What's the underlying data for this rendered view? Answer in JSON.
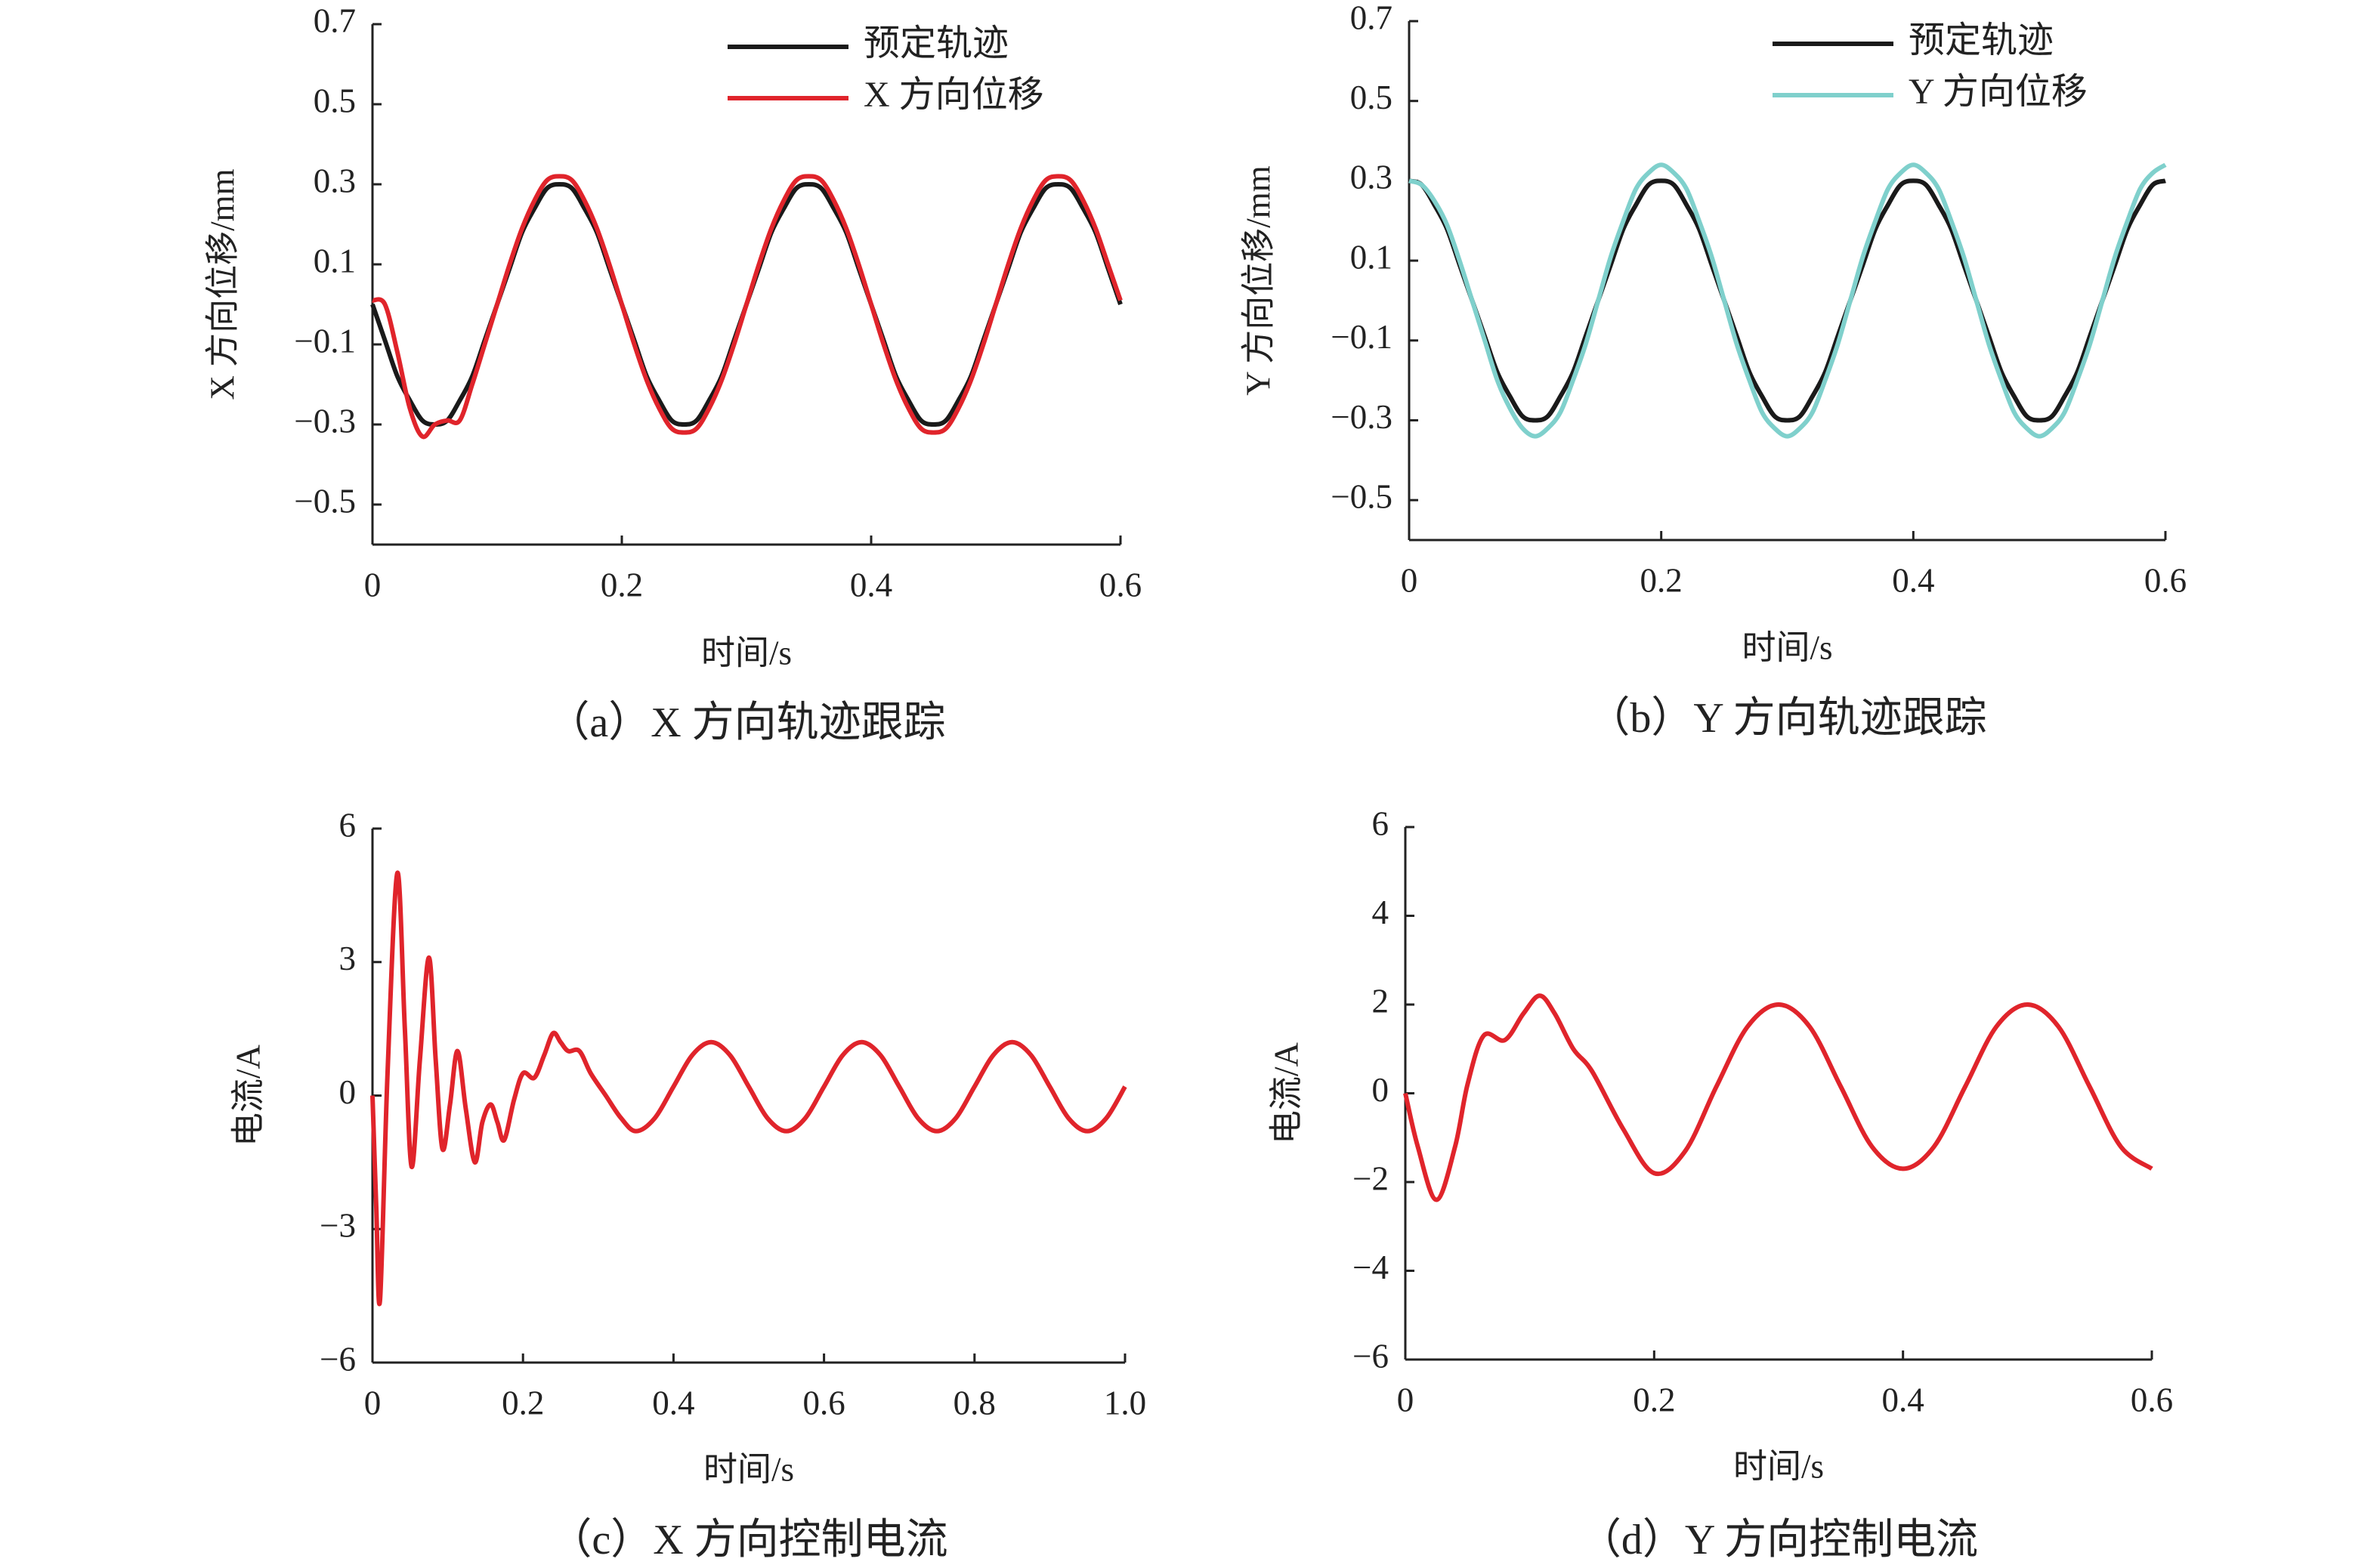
{
  "chart_data": [
    {
      "type": "line",
      "caption": "（a）X 方向轨迹跟踪",
      "xlabel": "时间/s",
      "ylabel": "X 方向位移/mm",
      "legend": "upper right",
      "xlim": [
        0,
        0.6
      ],
      "xticks": [
        0,
        0.2,
        0.4,
        0.6
      ],
      "ylim": [
        -0.6,
        0.7
      ],
      "yticks": [
        0.7,
        0.5,
        0.3,
        0.1,
        {
          "value": -0.1,
          "label": "−0.1"
        },
        {
          "value": -0.3,
          "label": "−0.3"
        },
        {
          "value": -0.5,
          "label": "−0.5"
        }
      ],
      "x": [
        0,
        0.01,
        0.02,
        0.03,
        0.04,
        0.05,
        0.06,
        0.07,
        0.08,
        0.09,
        0.1,
        0.11,
        0.12,
        0.13,
        0.14,
        0.15,
        0.16,
        0.17,
        0.18,
        0.19,
        0.2,
        0.21,
        0.22,
        0.23,
        0.24,
        0.25,
        0.26,
        0.27,
        0.28,
        0.29,
        0.3,
        0.31,
        0.32,
        0.33,
        0.34,
        0.35,
        0.36,
        0.37,
        0.38,
        0.39,
        0.4,
        0.41,
        0.42,
        0.43,
        0.44,
        0.45,
        0.46,
        0.47,
        0.48,
        0.49,
        0.5,
        0.51,
        0.52,
        0.53,
        0.54,
        0.55,
        0.56,
        0.57,
        0.58,
        0.59,
        0.6
      ],
      "series": [
        {
          "name": "预定轨迹",
          "color": "#1a1a1a",
          "values": [
            0,
            -0.09,
            -0.18,
            -0.24,
            -0.29,
            -0.3,
            -0.29,
            -0.24,
            -0.18,
            -0.09,
            0,
            0.09,
            0.18,
            0.24,
            0.29,
            0.3,
            0.29,
            0.24,
            0.18,
            0.09,
            0,
            -0.09,
            -0.18,
            -0.24,
            -0.29,
            -0.3,
            -0.29,
            -0.24,
            -0.18,
            -0.09,
            0,
            0.09,
            0.18,
            0.24,
            0.29,
            0.3,
            0.29,
            0.24,
            0.18,
            0.09,
            0,
            -0.09,
            -0.18,
            -0.24,
            -0.29,
            -0.3,
            -0.29,
            -0.24,
            -0.18,
            -0.09,
            0,
            0.09,
            0.18,
            0.24,
            0.29,
            0.3,
            0.29,
            0.24,
            0.18,
            0.09,
            0
          ]
        },
        {
          "name": "X 方向位移",
          "color": "#e0242b",
          "values": [
            0.01,
            0,
            -0.12,
            -0.26,
            -0.33,
            -0.3,
            -0.29,
            -0.29,
            -0.2,
            -0.1,
            0,
            0.1,
            0.19,
            0.26,
            0.31,
            0.32,
            0.31,
            0.26,
            0.19,
            0.1,
            0,
            -0.1,
            -0.19,
            -0.26,
            -0.31,
            -0.32,
            -0.31,
            -0.26,
            -0.19,
            -0.1,
            0,
            0.1,
            0.19,
            0.26,
            0.31,
            0.32,
            0.31,
            0.26,
            0.19,
            0.1,
            0,
            -0.1,
            -0.19,
            -0.26,
            -0.31,
            -0.32,
            -0.31,
            -0.26,
            -0.19,
            -0.1,
            0,
            0.1,
            0.19,
            0.26,
            0.31,
            0.32,
            0.31,
            0.26,
            0.19,
            0.1,
            0.01
          ]
        }
      ]
    },
    {
      "type": "line",
      "caption": "（b）Y 方向轨迹跟踪",
      "xlabel": "时间/s",
      "ylabel": "Y 方向位移/mm",
      "legend": "upper right",
      "xlim": [
        0,
        0.6
      ],
      "xticks": [
        0,
        0.2,
        0.4,
        0.6
      ],
      "ylim": [
        -0.6,
        0.7
      ],
      "yticks": [
        0.7,
        0.5,
        0.3,
        0.1,
        {
          "value": -0.1,
          "label": "−0.1"
        },
        {
          "value": -0.3,
          "label": "−0.3"
        },
        {
          "value": -0.5,
          "label": "−0.5"
        }
      ],
      "x": [
        0,
        0.01,
        0.02,
        0.03,
        0.04,
        0.05,
        0.06,
        0.07,
        0.08,
        0.09,
        0.1,
        0.11,
        0.12,
        0.13,
        0.14,
        0.15,
        0.16,
        0.17,
        0.18,
        0.19,
        0.2,
        0.21,
        0.22,
        0.23,
        0.24,
        0.25,
        0.26,
        0.27,
        0.28,
        0.29,
        0.3,
        0.31,
        0.32,
        0.33,
        0.34,
        0.35,
        0.36,
        0.37,
        0.38,
        0.39,
        0.4,
        0.41,
        0.42,
        0.43,
        0.44,
        0.45,
        0.46,
        0.47,
        0.48,
        0.49,
        0.5,
        0.51,
        0.52,
        0.53,
        0.54,
        0.55,
        0.56,
        0.57,
        0.58,
        0.59,
        0.6
      ],
      "series": [
        {
          "name": "预定轨迹",
          "color": "#1a1a1a",
          "values": [
            0.3,
            0.29,
            0.24,
            0.18,
            0.09,
            0,
            -0.09,
            -0.18,
            -0.24,
            -0.29,
            -0.3,
            -0.29,
            -0.24,
            -0.18,
            -0.09,
            0,
            0.09,
            0.18,
            0.24,
            0.29,
            0.3,
            0.29,
            0.24,
            0.18,
            0.09,
            0,
            -0.09,
            -0.18,
            -0.24,
            -0.29,
            -0.3,
            -0.29,
            -0.24,
            -0.18,
            -0.09,
            0,
            0.09,
            0.18,
            0.24,
            0.29,
            0.3,
            0.29,
            0.24,
            0.18,
            0.09,
            0,
            -0.09,
            -0.18,
            -0.24,
            -0.29,
            -0.3,
            -0.29,
            -0.24,
            -0.18,
            -0.09,
            0,
            0.09,
            0.18,
            0.24,
            0.29,
            0.3
          ]
        },
        {
          "name": "Y 方向位移",
          "color": "#7fd0cc",
          "values": [
            0.3,
            0.29,
            0.25,
            0.19,
            0.1,
            0,
            -0.1,
            -0.2,
            -0.27,
            -0.32,
            -0.34,
            -0.32,
            -0.28,
            -0.2,
            -0.11,
            0,
            0.11,
            0.2,
            0.28,
            0.32,
            0.34,
            0.32,
            0.28,
            0.2,
            0.11,
            0,
            -0.11,
            -0.2,
            -0.28,
            -0.32,
            -0.34,
            -0.32,
            -0.28,
            -0.2,
            -0.11,
            0,
            0.11,
            0.2,
            0.28,
            0.32,
            0.34,
            0.32,
            0.28,
            0.2,
            0.11,
            0,
            -0.11,
            -0.2,
            -0.28,
            -0.32,
            -0.34,
            -0.32,
            -0.28,
            -0.2,
            -0.11,
            0,
            0.11,
            0.2,
            0.28,
            0.32,
            0.34
          ]
        }
      ]
    },
    {
      "type": "line",
      "caption": "（c）X 方向控制电流",
      "xlabel": "时间/s",
      "ylabel": "电流/A",
      "color": "#e0242b",
      "xlim": [
        0,
        1
      ],
      "xticks": [
        0,
        0.2,
        0.4,
        0.6,
        0.8,
        {
          "value": 1,
          "label": "1.0"
        }
      ],
      "ylim": [
        -6,
        6
      ],
      "yticks": [
        6,
        3,
        0,
        {
          "value": -3,
          "label": "−3"
        },
        {
          "value": -6,
          "label": "−6"
        }
      ],
      "x": [
        0,
        0.005,
        0.01,
        0.02,
        0.033,
        0.043,
        0.052,
        0.063,
        0.075,
        0.084,
        0.093,
        0.103,
        0.113,
        0.124,
        0.136,
        0.146,
        0.157,
        0.166,
        0.175,
        0.188,
        0.2,
        0.215,
        0.228,
        0.24,
        0.25,
        0.26,
        0.275,
        0.29,
        0.31,
        0.33,
        0.35,
        0.375,
        0.4,
        0.425,
        0.45,
        0.475,
        0.5,
        0.525,
        0.55,
        0.575,
        0.6,
        0.625,
        0.65,
        0.675,
        0.7,
        0.725,
        0.75,
        0.775,
        0.8,
        0.825,
        0.85,
        0.875,
        0.9,
        0.925,
        0.95,
        0.975,
        1
      ],
      "values": [
        0,
        -2.5,
        -4.6,
        0.5,
        5.0,
        1.5,
        -1.6,
        0.8,
        3.1,
        0.8,
        -1.2,
        -0.2,
        1.0,
        -0.3,
        -1.5,
        -0.6,
        -0.2,
        -0.6,
        -1.0,
        -0.1,
        0.5,
        0.4,
        0.9,
        1.4,
        1.2,
        1.0,
        1.0,
        0.5,
        0,
        -0.5,
        -0.8,
        -0.51,
        0.2,
        0.91,
        1.2,
        0.91,
        0.2,
        -0.51,
        -0.8,
        -0.51,
        0.2,
        0.91,
        1.2,
        0.91,
        0.2,
        -0.51,
        -0.8,
        -0.51,
        0.2,
        0.91,
        1.2,
        0.91,
        0.2,
        -0.51,
        -0.8,
        -0.51,
        0.2
      ]
    },
    {
      "type": "line",
      "caption": "（d）Y 方向控制电流",
      "xlabel": "时间/s",
      "ylabel": "电流/A",
      "color": "#e0242b",
      "xlim": [
        0,
        0.6
      ],
      "xticks": [
        0,
        0.2,
        0.4,
        0.6
      ],
      "ylim": [
        -6,
        6
      ],
      "yticks": [
        6,
        4,
        2,
        0,
        {
          "value": -2,
          "label": "−2"
        },
        {
          "value": -4,
          "label": "−4"
        },
        {
          "value": -6,
          "label": "−6"
        }
      ],
      "x": [
        0,
        0.01,
        0.025,
        0.04,
        0.05,
        0.063,
        0.08,
        0.095,
        0.108,
        0.12,
        0.135,
        0.15,
        0.175,
        0.2,
        0.225,
        0.25,
        0.275,
        0.3,
        0.325,
        0.35,
        0.375,
        0.4,
        0.425,
        0.45,
        0.475,
        0.5,
        0.525,
        0.55,
        0.575,
        0.6
      ],
      "values": [
        0,
        -1.2,
        -2.4,
        -1.2,
        0.2,
        1.3,
        1.2,
        1.8,
        2.2,
        1.8,
        1.0,
        0.5,
        -0.8,
        -1.8,
        -1.3,
        0.15,
        1.5,
        2.0,
        1.5,
        0.15,
        -1.2,
        -1.7,
        -1.2,
        0.15,
        1.5,
        2.0,
        1.5,
        0.15,
        -1.2,
        -1.7
      ]
    }
  ]
}
